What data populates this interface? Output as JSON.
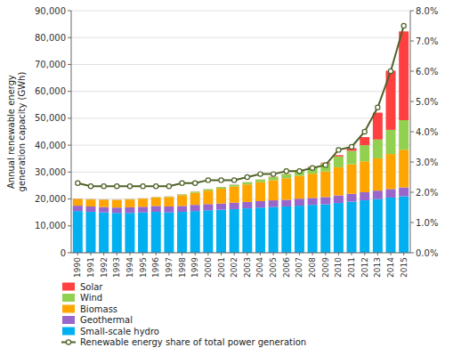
{
  "chart_data": {
    "type": "bar",
    "stacked": true,
    "grid": true,
    "legend": "bottom",
    "ylabel": "Annual renewable energy\n generation capacity  (GWh)",
    "categories": [
      "1990",
      "1991",
      "1992",
      "1993",
      "1994",
      "1995",
      "1996",
      "1997",
      "1998",
      "1999",
      "2000",
      "2001",
      "2002",
      "2003",
      "2004",
      "2005",
      "2006",
      "2007",
      "2008",
      "2009",
      "2010",
      "2011",
      "2012",
      "2013",
      "2014",
      "2015"
    ],
    "ylim": [
      0,
      90000
    ],
    "yticks": [
      0,
      {
        "value": 10000,
        "label": "10,000"
      },
      {
        "value": 20000,
        "label": "20,000"
      },
      {
        "value": 30000,
        "label": "30,000"
      },
      {
        "value": 40000,
        "label": "40,000"
      },
      {
        "value": 50000,
        "label": "50,000"
      },
      {
        "value": 60000,
        "label": "60,000"
      },
      {
        "value": 70000,
        "label": "70,000"
      },
      {
        "value": 80000,
        "label": "80,000"
      },
      {
        "value": 90000,
        "label": "90,000"
      }
    ],
    "y2lim": [
      0,
      0.08
    ],
    "y2ticks": [
      {
        "value": 0.0,
        "label": "0.0%"
      },
      {
        "value": 0.01,
        "label": "1.0%"
      },
      {
        "value": 0.02,
        "label": "2.0%"
      },
      {
        "value": 0.03,
        "label": "3.0%"
      },
      {
        "value": 0.04,
        "label": "4.0%"
      },
      {
        "value": 0.05,
        "label": "5.0%"
      },
      {
        "value": 0.06,
        "label": "6.0%"
      },
      {
        "value": 0.07,
        "label": "7.0%"
      },
      {
        "value": 0.08,
        "label": "8.0%"
      }
    ],
    "series": [
      {
        "name": "Small-scale hydro",
        "type": "bar",
        "color": "#00B0F0",
        "values": [
          15500,
          15200,
          15000,
          14800,
          14800,
          15000,
          15200,
          15000,
          15200,
          15500,
          15800,
          16000,
          16200,
          16500,
          16800,
          17000,
          17200,
          17500,
          17800,
          18000,
          18500,
          19000,
          19500,
          20000,
          20500,
          21000
        ]
      },
      {
        "name": "Geothermal",
        "type": "bar",
        "color": "#9966CC",
        "values": [
          2000,
          2000,
          2000,
          2000,
          2100,
          2100,
          2200,
          2200,
          2200,
          2300,
          2300,
          2300,
          2400,
          2400,
          2400,
          2500,
          2500,
          2600,
          2600,
          2700,
          2800,
          2900,
          3000,
          3100,
          3200,
          3300
        ]
      },
      {
        "name": "Biomass",
        "type": "bar",
        "color": "#FFA500",
        "values": [
          2500,
          2600,
          2700,
          2800,
          2900,
          3000,
          3100,
          3500,
          4000,
          4500,
          5000,
          5500,
          6000,
          6500,
          7000,
          7500,
          8000,
          8500,
          9000,
          9500,
          10500,
          11000,
          11500,
          12000,
          13000,
          14000
        ]
      },
      {
        "name": "Wind",
        "type": "bar",
        "color": "#92D050",
        "values": [
          100,
          100,
          100,
          100,
          100,
          100,
          150,
          200,
          300,
          400,
          500,
          600,
          700,
          800,
          1000,
          1200,
          1500,
          2000,
          2500,
          3000,
          4000,
          5000,
          6000,
          7000,
          9000,
          11000
        ]
      },
      {
        "name": "Solar",
        "type": "bar",
        "color": "#FF4040",
        "values": [
          50,
          50,
          50,
          50,
          50,
          50,
          50,
          50,
          50,
          50,
          50,
          50,
          50,
          50,
          50,
          100,
          100,
          150,
          200,
          300,
          500,
          1000,
          3000,
          10000,
          22000,
          33000
        ]
      },
      {
        "name": "Renewable energy share of total power generation",
        "type": "line",
        "axis": "y2",
        "marker": "circle",
        "color": "#4F6228",
        "values": [
          0.023,
          0.022,
          0.022,
          0.022,
          0.022,
          0.022,
          0.022,
          0.022,
          0.023,
          0.023,
          0.024,
          0.024,
          0.024,
          0.025,
          0.026,
          0.026,
          0.027,
          0.027,
          0.028,
          0.029,
          0.034,
          0.035,
          0.04,
          0.048,
          0.06,
          0.075
        ]
      }
    ]
  }
}
